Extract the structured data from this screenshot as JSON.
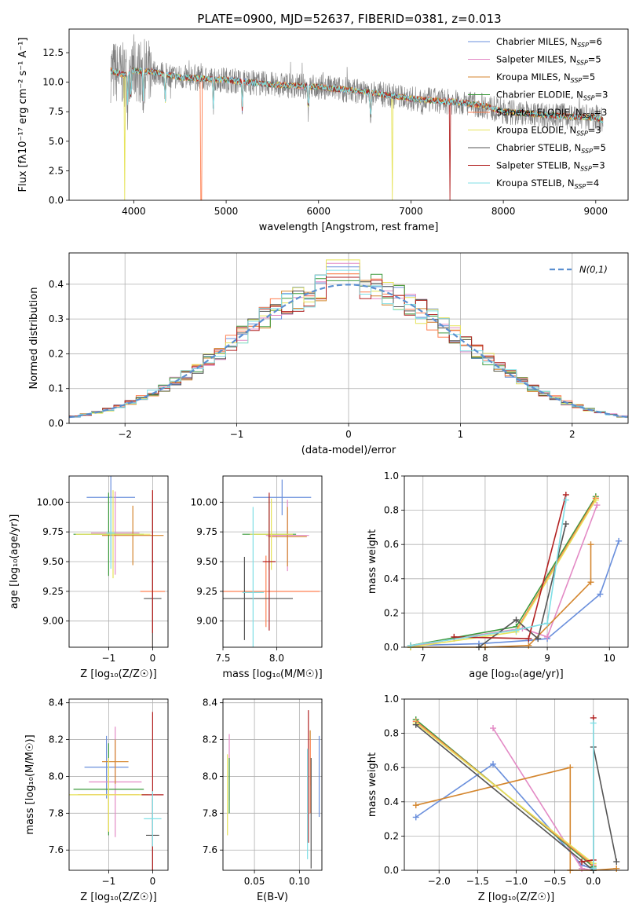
{
  "figure": {
    "title": "PLATE=0900, MJD=52637, FIBERID=0381, z=0.013",
    "series_colors": [
      "#6a8fdc",
      "#e38ac5",
      "#d4862e",
      "#3c9a3c",
      "#ff7f50",
      "#e6e35a",
      "#555555",
      "#b22222",
      "#7fdfe6"
    ],
    "grid": true
  },
  "chart_data": [
    {
      "id": "spectrum",
      "type": "line",
      "title": "PLATE=0900, MJD=52637, FIBERID=0381, z=0.013",
      "xlabel": "wavelength [Angstrom, rest frame]",
      "ylabel": "Flux [fλ10⁻¹⁷ erg cm⁻² s⁻¹ A⁻¹]",
      "xlim": [
        3300,
        9350
      ],
      "ylim": [
        0,
        14.5
      ],
      "xticks": [
        4000,
        5000,
        6000,
        7000,
        8000,
        9000
      ],
      "yticks": [
        0.0,
        2.5,
        5.0,
        7.5,
        10.0,
        12.5
      ],
      "grid": false,
      "legend": "top-right",
      "data_color": "#808080",
      "continuum": {
        "x": [
          3750,
          3900,
          4000,
          4200,
          4500,
          5000,
          5500,
          6000,
          6500,
          7000,
          7500,
          7800,
          8000,
          8500,
          9000,
          9080
        ],
        "y": [
          11.0,
          10.6,
          11.0,
          10.9,
          10.4,
          10.2,
          9.8,
          9.6,
          9.2,
          8.6,
          8.3,
          8.0,
          7.5,
          7.2,
          7.0,
          6.8
        ]
      },
      "absorption_lines": [
        3934,
        3969,
        4102,
        4340,
        4861,
        5175,
        5890,
        6563
      ],
      "model_dropouts": [
        {
          "x": 3900,
          "series": 5
        },
        {
          "x": 4730,
          "series": 4
        },
        {
          "x": 6800,
          "series": 5
        },
        {
          "x": 7420,
          "series": 7
        }
      ],
      "series": [
        {
          "name": "Chabrier MILES, N",
          "sub": "SSP",
          "suffix": "=6"
        },
        {
          "name": "Salpeter MILES, N",
          "sub": "SSP",
          "suffix": "=5"
        },
        {
          "name": "Kroupa MILES, N",
          "sub": "SSP",
          "suffix": "=5"
        },
        {
          "name": "Chabrier ELODIE, N",
          "sub": "SSP",
          "suffix": "=3"
        },
        {
          "name": "Salpeter ELODIE, N",
          "sub": "SSP",
          "suffix": "=3"
        },
        {
          "name": "Kroupa ELODIE, N",
          "sub": "SSP",
          "suffix": "=3"
        },
        {
          "name": "Chabrier STELIB, N",
          "sub": "SSP",
          "suffix": "=5"
        },
        {
          "name": "Salpeter STELIB, N",
          "sub": "SSP",
          "suffix": "=3"
        },
        {
          "name": "Kroupa STELIB, N",
          "sub": "SSP",
          "suffix": "=4"
        }
      ]
    },
    {
      "id": "residuals",
      "type": "line",
      "xlabel": "(data-model)/error",
      "ylabel": "Normed distribution",
      "xlim": [
        -2.5,
        2.5
      ],
      "ylim": [
        0,
        0.49
      ],
      "xticks": [
        -2,
        -1,
        0,
        1,
        2
      ],
      "yticks": [
        0.0,
        0.1,
        0.2,
        0.3,
        0.4
      ],
      "grid": true,
      "legend": "top-right",
      "reference": {
        "name": "N(0,1)",
        "mean": 0,
        "sigma": 1,
        "color": "#5b8fd0"
      },
      "bin_width": 0.1,
      "series_peaks": [
        0.45,
        0.46,
        0.43,
        0.41,
        0.43,
        0.47,
        0.42,
        0.42,
        0.44
      ]
    },
    {
      "id": "age_vs_Z",
      "type": "scatter",
      "xlabel": "Z [log₁₀(Z/Z☉)]",
      "ylabel": "age  [log₁₀(age/yr)]",
      "xlim": [
        -1.9,
        0.35
      ],
      "ylim": [
        8.78,
        10.22
      ],
      "xticks": [
        -1,
        0
      ],
      "yticks": [
        9.0,
        9.25,
        9.5,
        9.75,
        10.0
      ],
      "grid": true,
      "points": [
        {
          "x": -0.95,
          "y": 10.04,
          "xerr": 0.55,
          "yerr": 0.53
        },
        {
          "x": -0.85,
          "y": 9.74,
          "xerr": 0.55,
          "yerr": 0.35
        },
        {
          "x": -0.45,
          "y": 9.72,
          "xerr": 0.7,
          "yerr": 0.25
        },
        {
          "x": -1.0,
          "y": 9.73,
          "xerr": 0.8,
          "yerr": 0.35
        },
        {
          "x": 0.0,
          "y": 9.25,
          "xerr": 0.28,
          "yerr": 0.85
        },
        {
          "x": -0.9,
          "y": 9.73,
          "xerr": 0.85,
          "yerr": 0.37
        },
        {
          "x": 0.0,
          "y": 9.19,
          "xerr": 0.2,
          "yerr": 0.8
        },
        {
          "x": 0.0,
          "y": 9.5,
          "xerr": 0.02,
          "yerr": 0.6
        },
        {
          "x": -0.95,
          "y": 9.74,
          "xerr": 0.1,
          "yerr": 0.3
        }
      ]
    },
    {
      "id": "age_vs_mass",
      "type": "scatter",
      "xlabel": "mass [log₁₀(M/M☉)]",
      "ylabel": "",
      "xlim": [
        7.5,
        8.42
      ],
      "ylim": [
        8.78,
        10.22
      ],
      "xticks": [
        7.5,
        8.0
      ],
      "yticks": [
        9.0,
        9.25,
        9.5,
        9.75,
        10.0
      ],
      "grid": true,
      "points": [
        {
          "x": 8.05,
          "y": 10.04,
          "xerr": 0.27,
          "yerr": 0.15
        },
        {
          "x": 8.1,
          "y": 9.72,
          "xerr": 0.2,
          "yerr": 0.3
        },
        {
          "x": 8.1,
          "y": 9.71,
          "xerr": 0.18,
          "yerr": 0.25
        },
        {
          "x": 7.93,
          "y": 9.73,
          "xerr": 0.25,
          "yerr": 0.3
        },
        {
          "x": 7.9,
          "y": 9.25,
          "xerr": 0.5,
          "yerr": 0.3
        },
        {
          "x": 7.95,
          "y": 9.73,
          "xerr": 0.2,
          "yerr": 0.3
        },
        {
          "x": 7.7,
          "y": 9.19,
          "xerr": 0.45,
          "yerr": 0.35
        },
        {
          "x": 7.93,
          "y": 9.5,
          "xerr": 0.06,
          "yerr": 0.58
        },
        {
          "x": 7.78,
          "y": 9.24,
          "xerr": 0.1,
          "yerr": 0.72
        }
      ]
    },
    {
      "id": "weight_vs_age",
      "type": "line",
      "xlabel": "age  [log₁₀(age/yr)]",
      "ylabel": "mass weight",
      "xlim": [
        6.7,
        10.3
      ],
      "ylim": [
        0,
        1.0
      ],
      "xticks": [
        7,
        8,
        9,
        10
      ],
      "yticks": [
        0.0,
        0.2,
        0.4,
        0.6,
        0.8,
        1.0
      ],
      "grid": true,
      "series": [
        {
          "x": [
            6.8,
            7.9,
            8.7,
            9.0,
            9.85,
            10.15
          ],
          "y": [
            0.01,
            0.02,
            0.04,
            0.05,
            0.31,
            0.62
          ]
        },
        {
          "x": [
            6.8,
            7.5,
            8.6,
            9.0,
            9.8
          ],
          "y": [
            0.0,
            0.05,
            0.11,
            0.06,
            0.83
          ]
        },
        {
          "x": [
            6.8,
            8.0,
            8.7,
            9.7,
            9.7
          ],
          "y": [
            0.0,
            0.0,
            0.01,
            0.38,
            0.6
          ]
        },
        {
          "x": [
            6.8,
            8.5,
            9.78
          ],
          "y": [
            0.01,
            0.12,
            0.88
          ]
        },
        {
          "x": [
            6.8,
            8.5,
            9.78
          ],
          "y": [
            0.01,
            0.1,
            0.87
          ]
        },
        {
          "x": [
            6.8,
            8.5,
            9.78
          ],
          "y": [
            0.0,
            0.09,
            0.86
          ]
        },
        {
          "x": [
            7.9,
            8.5,
            8.85,
            9.3
          ],
          "y": [
            0.0,
            0.16,
            0.05,
            0.72
          ]
        },
        {
          "x": [
            7.5,
            8.7,
            9.3
          ],
          "y": [
            0.06,
            0.05,
            0.89
          ]
        },
        {
          "x": [
            6.8,
            8.5,
            9.0,
            9.3
          ],
          "y": [
            0.01,
            0.1,
            0.14,
            0.86
          ]
        }
      ]
    },
    {
      "id": "mass_vs_Z",
      "type": "scatter",
      "xlabel": "Z [log₁₀(Z/Z☉)]",
      "ylabel": "mass [log₁₀(M/M☉)]",
      "xlim": [
        -1.9,
        0.35
      ],
      "ylim": [
        7.49,
        8.42
      ],
      "xticks": [
        -1,
        0
      ],
      "yticks": [
        7.6,
        7.8,
        8.0,
        8.2,
        8.4
      ],
      "grid": true,
      "points": [
        {
          "x": -1.05,
          "y": 8.05,
          "xerr": 0.5,
          "yerr": 0.17
        },
        {
          "x": -0.85,
          "y": 7.97,
          "xerr": 0.6,
          "yerr": 0.3
        },
        {
          "x": -0.85,
          "y": 8.08,
          "xerr": 0.3,
          "yerr": 0.12
        },
        {
          "x": -1.0,
          "y": 7.93,
          "xerr": 0.8,
          "yerr": 0.25
        },
        {
          "x": -1.0,
          "y": 7.9,
          "xerr": 0.7,
          "yerr": 0.2
        },
        {
          "x": -1.0,
          "y": 7.9,
          "xerr": 0.9,
          "yerr": 0.2
        },
        {
          "x": 0.0,
          "y": 7.68,
          "xerr": 0.15,
          "yerr": 0.2
        },
        {
          "x": 0.0,
          "y": 7.9,
          "xerr": 0.25,
          "yerr": 0.45
        },
        {
          "x": 0.0,
          "y": 7.77,
          "xerr": 0.2,
          "yerr": 0.15
        }
      ]
    },
    {
      "id": "mass_vs_ebv",
      "type": "scatter",
      "xlabel": "E(B-V)",
      "ylabel": "",
      "xlim": [
        0.015,
        0.125
      ],
      "ylim": [
        7.49,
        8.42
      ],
      "xticks": [
        0.05,
        0.1
      ],
      "yticks": [
        7.6,
        7.8,
        8.0,
        8.2,
        8.4
      ],
      "grid": true,
      "points": [
        {
          "x": 0.122,
          "y": 8.0,
          "yerr": 0.22
        },
        {
          "x": 0.022,
          "y": 8.05,
          "yerr": 0.18
        },
        {
          "x": 0.112,
          "y": 8.1,
          "yerr": 0.15
        },
        {
          "x": 0.022,
          "y": 7.95,
          "yerr": 0.15
        },
        {
          "x": 0.112,
          "y": 8.0,
          "yerr": 0.2
        },
        {
          "x": 0.02,
          "y": 7.9,
          "yerr": 0.22
        },
        {
          "x": 0.113,
          "y": 7.8,
          "yerr": 0.3
        },
        {
          "x": 0.11,
          "y": 8.0,
          "yerr": 0.36
        },
        {
          "x": 0.109,
          "y": 7.85,
          "yerr": 0.3
        }
      ]
    },
    {
      "id": "weight_vs_Z",
      "type": "line",
      "xlabel": "Z [log₁₀(Z/Z☉)]",
      "ylabel": "mass weight",
      "xlim": [
        -2.45,
        0.45
      ],
      "ylim": [
        0,
        1.0
      ],
      "xticks": [
        -2.0,
        -1.5,
        -1.0,
        -0.5,
        0.0
      ],
      "yticks": [
        0.0,
        0.2,
        0.4,
        0.6,
        0.8,
        1.0
      ],
      "grid": true,
      "series": [
        {
          "x": [
            -2.3,
            -1.3,
            -0.15,
            0.0
          ],
          "y": [
            0.31,
            0.62,
            0.03,
            0.01
          ]
        },
        {
          "x": [
            -1.3,
            -0.15,
            0.0
          ],
          "y": [
            0.83,
            0.01,
            0.0
          ]
        },
        {
          "x": [
            -2.3,
            -0.3,
            -0.3,
            0.0,
            0.3
          ],
          "y": [
            0.38,
            0.6,
            0.0,
            0.0,
            0.01
          ]
        },
        {
          "x": [
            -2.3,
            0.0
          ],
          "y": [
            0.88,
            0.02
          ]
        },
        {
          "x": [
            -2.3,
            0.0
          ],
          "y": [
            0.87,
            0.03
          ]
        },
        {
          "x": [
            -2.3,
            0.0
          ],
          "y": [
            0.86,
            0.04
          ]
        },
        {
          "x": [
            -2.3,
            0.0,
            0.0,
            0.3
          ],
          "y": [
            0.85,
            0.0,
            0.72,
            0.05
          ]
        },
        {
          "x": [
            -0.15,
            0.0,
            0.0
          ],
          "y": [
            0.05,
            0.06,
            0.89
          ]
        },
        {
          "x": [
            0.0,
            0.0
          ],
          "y": [
            0.01,
            0.86
          ]
        }
      ]
    }
  ]
}
